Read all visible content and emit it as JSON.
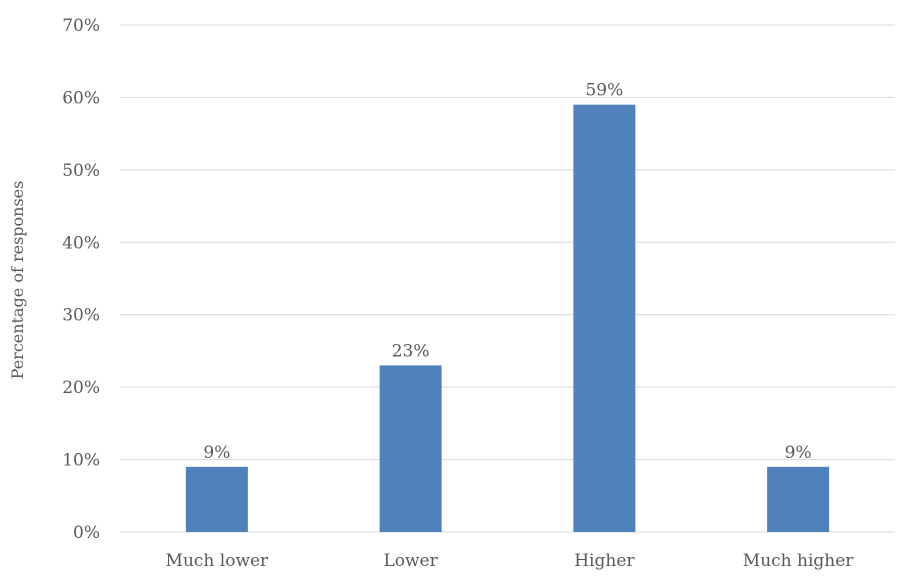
{
  "chart_data": {
    "type": "bar",
    "title": "",
    "xlabel": "",
    "ylabel": "Percentage of responses",
    "categories": [
      "Much lower",
      "Lower",
      "Higher",
      "Much higher"
    ],
    "values": [
      9,
      23,
      59,
      9
    ],
    "value_labels": [
      "9%",
      "23%",
      "59%",
      "9%"
    ],
    "ylim": [
      0,
      70
    ],
    "yticks": [
      0,
      10,
      20,
      30,
      40,
      50,
      60,
      70
    ],
    "ytick_labels": [
      "0%",
      "10%",
      "20%",
      "30%",
      "40%",
      "50%",
      "60%",
      "70%"
    ],
    "grid": true,
    "legend": "none",
    "colors": {
      "bar": "#4f81bd",
      "grid": "#d9d9d9",
      "text": "#595959"
    }
  }
}
